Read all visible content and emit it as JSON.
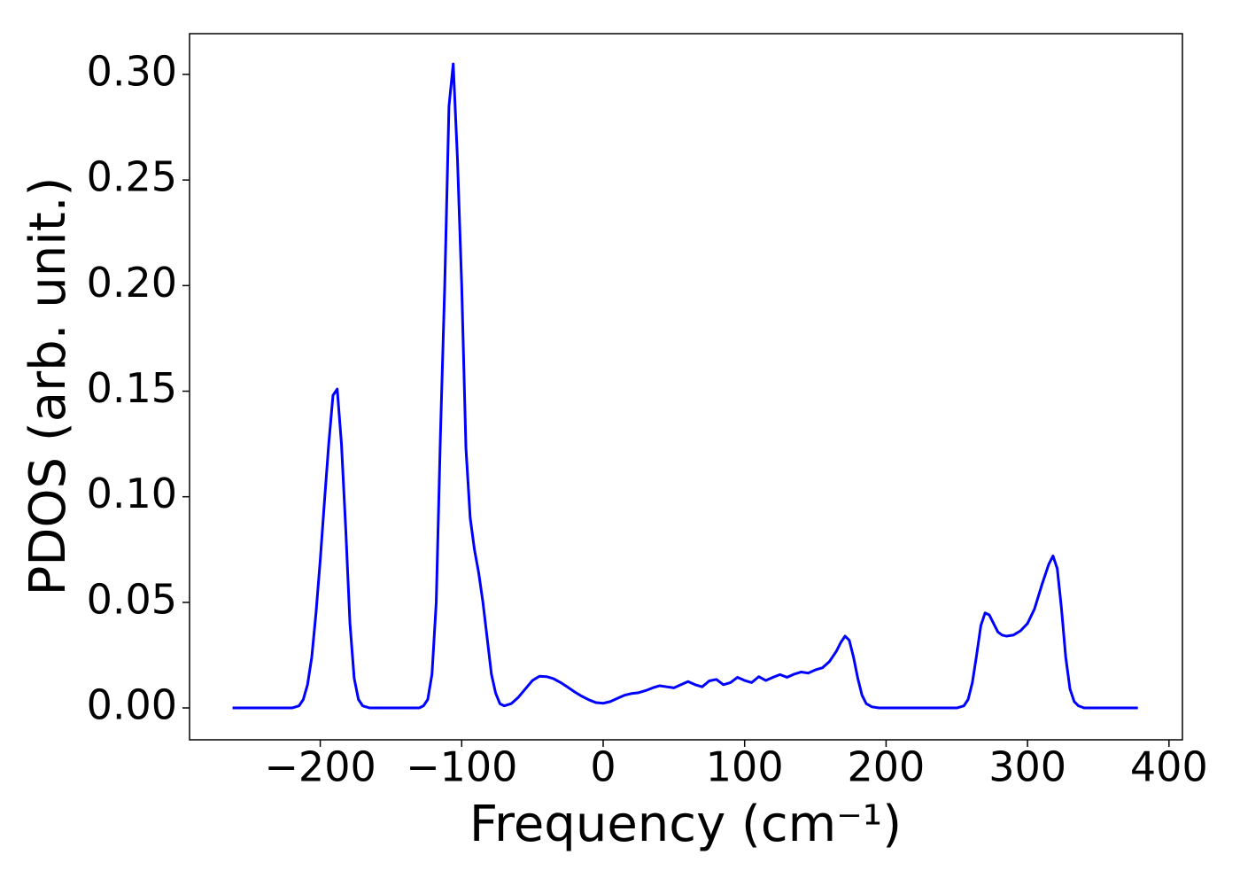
{
  "chart_data": {
    "type": "line",
    "xlabel": "Frequency (cm⁻¹)",
    "ylabel": "PDOS (arb. unit.)",
    "color": "#0000ff",
    "xlim": [
      -292.4,
      409.5
    ],
    "ylim": [
      -0.0151,
      0.3193
    ],
    "xticks": [
      {
        "value": -200,
        "label": "−200"
      },
      {
        "value": -100,
        "label": "−100"
      },
      0,
      100,
      200,
      300,
      400
    ],
    "yticks": [
      {
        "value": 0,
        "label": "0.00"
      },
      {
        "value": 0.05,
        "label": "0.05"
      },
      {
        "value": 0.1,
        "label": "0.10"
      },
      {
        "value": 0.15,
        "label": "0.15"
      },
      {
        "value": 0.2,
        "label": "0.20"
      },
      {
        "value": 0.25,
        "label": "0.25"
      },
      {
        "value": 0.3,
        "label": "0.30"
      }
    ],
    "x": [
      -262,
      -220,
      -215,
      -212,
      -209,
      -206,
      -203,
      -200,
      -197,
      -194,
      -191,
      -188,
      -185,
      -182,
      -179,
      -176,
      -173,
      -170,
      -165,
      -130,
      -127,
      -124,
      -121,
      -118,
      -115,
      -112,
      -109,
      -106,
      -103,
      -100,
      -97,
      -94,
      -91,
      -88,
      -85,
      -82,
      -79,
      -76,
      -73,
      -70,
      -65,
      -60,
      -55,
      -50,
      -45,
      -40,
      -35,
      -30,
      -25,
      -20,
      -15,
      -10,
      -5,
      0,
      5,
      10,
      15,
      20,
      25,
      30,
      35,
      40,
      45,
      50,
      55,
      60,
      65,
      70,
      75,
      80,
      85,
      90,
      95,
      100,
      105,
      110,
      115,
      120,
      125,
      130,
      135,
      140,
      145,
      150,
      155,
      160,
      165,
      168,
      171,
      174,
      177,
      180,
      183,
      186,
      190,
      195,
      250,
      255,
      258,
      261,
      264,
      267,
      270,
      273,
      276,
      279,
      282,
      285,
      290,
      295,
      300,
      305,
      310,
      315,
      318,
      321,
      324,
      327,
      330,
      333,
      336,
      340,
      378
    ],
    "values": [
      0,
      0,
      0.001,
      0.004,
      0.011,
      0.024,
      0.045,
      0.07,
      0.098,
      0.125,
      0.148,
      0.151,
      0.125,
      0.085,
      0.04,
      0.014,
      0.004,
      0.001,
      0,
      0,
      0.001,
      0.004,
      0.016,
      0.05,
      0.13,
      0.2,
      0.285,
      0.305,
      0.26,
      0.2,
      0.123,
      0.09,
      0.075,
      0.064,
      0.05,
      0.033,
      0.016,
      0.007,
      0.002,
      0.001,
      0.002,
      0.005,
      0.009,
      0.013,
      0.015,
      0.0148,
      0.0138,
      0.012,
      0.0098,
      0.0075,
      0.0055,
      0.0038,
      0.0025,
      0.0022,
      0.003,
      0.0045,
      0.006,
      0.0068,
      0.0072,
      0.0082,
      0.0095,
      0.0105,
      0.01,
      0.0095,
      0.011,
      0.0125,
      0.011,
      0.01,
      0.0128,
      0.0135,
      0.011,
      0.012,
      0.0145,
      0.013,
      0.012,
      0.0148,
      0.013,
      0.0145,
      0.0158,
      0.0145,
      0.016,
      0.017,
      0.0165,
      0.018,
      0.019,
      0.022,
      0.027,
      0.031,
      0.034,
      0.032,
      0.024,
      0.014,
      0.006,
      0.002,
      0.0005,
      0,
      0,
      0.001,
      0.004,
      0.012,
      0.025,
      0.039,
      0.045,
      0.044,
      0.04,
      0.036,
      0.0345,
      0.034,
      0.0345,
      0.0365,
      0.04,
      0.047,
      0.058,
      0.068,
      0.072,
      0.066,
      0.047,
      0.024,
      0.009,
      0.003,
      0.001,
      0,
      0
    ]
  }
}
